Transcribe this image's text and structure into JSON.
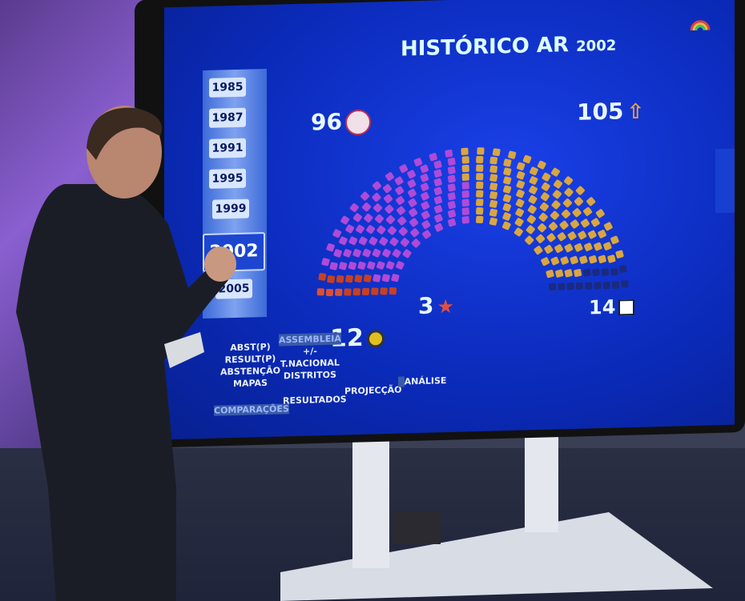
{
  "screen": {
    "title": "HISTÓRICO AR",
    "title_year": "2002",
    "years": [
      "1985",
      "1987",
      "1991",
      "1995",
      "1999",
      "2002",
      "2005"
    ],
    "selected_year": "2002",
    "parties": [
      {
        "seats": 3,
        "icon": "star-icon",
        "color": "#d8503a"
      },
      {
        "seats": 12,
        "icon": "cdu-icon",
        "color": "#c84020"
      },
      {
        "seats": 96,
        "icon": "ps-fist-icon",
        "color": "#b04ad8"
      },
      {
        "seats": 105,
        "icon": "psd-arrow-icon",
        "color": "#d9a640"
      },
      {
        "seats": 14,
        "icon": "cds-icon",
        "color": "#1a2a80"
      }
    ],
    "labels": {
      "ps": "96",
      "psd": "105",
      "be": "3",
      "cds": "14",
      "cdu": "12"
    },
    "left_menu": [
      "ABST(P)",
      "RESULT(P)",
      "ABSTENÇÃO",
      "MAPAS"
    ],
    "mid_menu": [
      "ASSEMBLEIA",
      "+/-",
      "T.NACIONAL",
      "DISTRITOS"
    ],
    "bottom_menu": [
      "COMPARAÇÕES",
      "RESULTADOS",
      "PROJECÇÃO",
      "ANÁLISE"
    ]
  }
}
